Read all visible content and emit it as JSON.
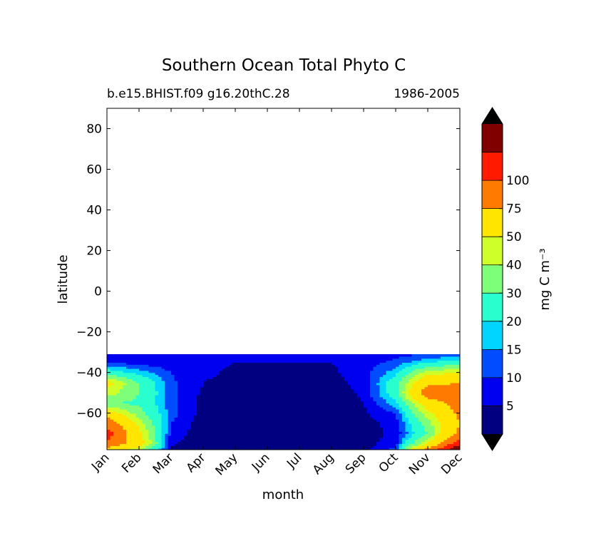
{
  "chart_data": {
    "type": "contourf",
    "title": "Southern Ocean Total Phyto C",
    "subtitle_left": "b.e15.BHIST.f09 g16.20thC.28",
    "subtitle_right": "1986-2005",
    "xlabel": "month",
    "ylabel": "latitude",
    "x_categories": [
      "Jan",
      "Feb",
      "Mar",
      "Apr",
      "May",
      "Jun",
      "Jul",
      "Aug",
      "Sep",
      "Oct",
      "Nov",
      "Dec"
    ],
    "ylim": [
      -78,
      90
    ],
    "y_ticks": [
      80,
      60,
      40,
      20,
      0,
      -20,
      -40,
      -60
    ],
    "y_tick_labels": [
      "80",
      "60",
      "40",
      "20",
      "0",
      "−20",
      "−40",
      "−60"
    ],
    "data_lat_range": [
      -78,
      -31
    ],
    "colorbar": {
      "label": "mg C m⁻³",
      "extend": "both",
      "levels": [
        5,
        10,
        15,
        20,
        30,
        40,
        50,
        75,
        100
      ],
      "tick_labels": [
        "5",
        "10",
        "15",
        "20",
        "30",
        "40",
        "50",
        "75",
        "100"
      ],
      "colors": [
        "#000080",
        "#0000f1",
        "#004dff",
        "#00d5ff",
        "#29ffce",
        "#7dff7a",
        "#ceff29",
        "#ffe500",
        "#ff7a00",
        "#ff1a00",
        "#800000"
      ],
      "under_color": "#000000",
      "over_color": "#000000"
    },
    "lat_grid": [
      -78,
      -75,
      -70,
      -65,
      -60,
      -55,
      -50,
      -45,
      -40,
      -35,
      -31
    ],
    "values": [
      [
        60,
        40,
        4,
        1,
        0,
        0,
        0,
        0,
        3,
        12,
        90,
        150
      ],
      [
        95,
        60,
        6,
        1,
        0,
        0,
        0,
        0,
        3,
        8,
        50,
        120
      ],
      [
        110,
        55,
        8,
        2,
        1,
        0,
        0,
        0,
        3,
        6,
        30,
        80
      ],
      [
        95,
        45,
        10,
        2,
        1,
        1,
        1,
        1,
        3,
        7,
        35,
        75
      ],
      [
        60,
        35,
        12,
        3,
        1,
        1,
        1,
        1,
        4,
        10,
        45,
        80
      ],
      [
        30,
        28,
        12,
        3,
        2,
        2,
        2,
        2,
        5,
        18,
        60,
        85
      ],
      [
        45,
        30,
        12,
        4,
        2,
        2,
        2,
        2,
        6,
        25,
        90,
        90
      ],
      [
        55,
        30,
        11,
        5,
        3,
        2,
        2,
        3,
        7,
        25,
        70,
        75
      ],
      [
        25,
        18,
        10,
        6,
        4,
        3,
        3,
        4,
        8,
        18,
        45,
        50
      ],
      [
        10,
        8,
        7,
        6,
        5,
        5,
        5,
        5,
        7,
        12,
        20,
        25
      ],
      [
        6,
        6,
        6,
        6,
        6,
        6,
        6,
        6,
        6,
        8,
        10,
        12
      ]
    ]
  }
}
